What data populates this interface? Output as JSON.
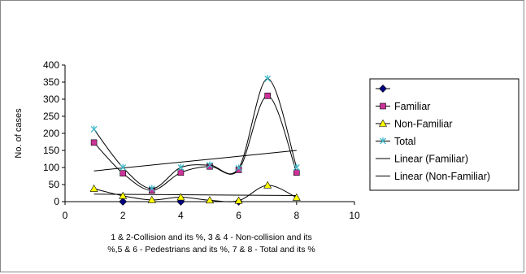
{
  "chart_data": {
    "type": "scatter",
    "title": "",
    "xlabel_lines": [
      "1 & 2-Collision and its %, 3 & 4 - Non-collision and its",
      "%,5 & 6 - Pedestrians and its %, 7 & 8 - Total and its %"
    ],
    "ylabel": "No. of cases",
    "xlim": [
      0,
      10
    ],
    "ylim": [
      0,
      400
    ],
    "xticks": [
      0,
      2,
      4,
      6,
      8,
      10
    ],
    "yticks": [
      0,
      50,
      100,
      150,
      200,
      250,
      300,
      350,
      400
    ],
    "grid": false,
    "legend_position": "right",
    "x": [
      1,
      2,
      3,
      4,
      5,
      6,
      7,
      8
    ],
    "series": [
      {
        "name": "",
        "marker": "diamond",
        "color": "#000080",
        "smooth": true,
        "values": [
          null,
          0,
          null,
          0,
          null,
          0,
          null,
          null
        ]
      },
      {
        "name": "Familiar",
        "marker": "square",
        "color": "#cc3399",
        "smooth": true,
        "values": [
          173,
          83,
          33,
          85,
          103,
          93,
          310,
          85
        ]
      },
      {
        "name": "Non-Familiar",
        "marker": "triangle",
        "color": "#ffff00",
        "smooth": true,
        "values": [
          38,
          17,
          5,
          13,
          4,
          3,
          48,
          12
        ]
      },
      {
        "name": "Total",
        "marker": "x",
        "color": "#3fb8c8",
        "smooth": true,
        "values": [
          212,
          100,
          38,
          100,
          107,
          98,
          360,
          100
        ]
      }
    ],
    "trendlines": [
      {
        "name": "Linear (Familiar)",
        "color": "#000000",
        "x": [
          1,
          8
        ],
        "y": [
          90,
          150
        ]
      },
      {
        "name": "Linear (Non-Familiar)",
        "color": "#000000",
        "x": [
          1,
          8
        ],
        "y": [
          22,
          18
        ]
      }
    ]
  }
}
